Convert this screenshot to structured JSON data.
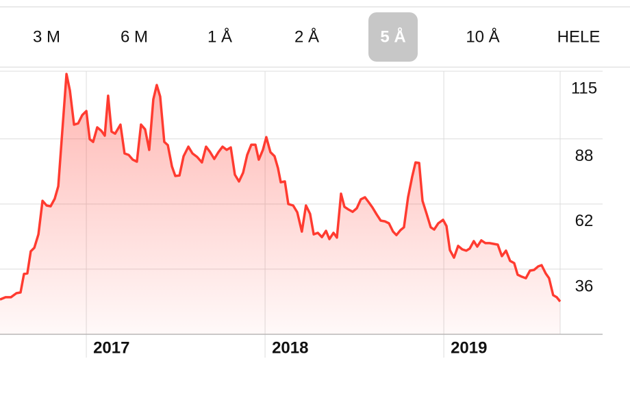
{
  "tabs": {
    "options": [
      "3 M",
      "6 M",
      "1 Å",
      "2 Å",
      "5 Å",
      "10 Å",
      "HELE"
    ],
    "selected": 4
  },
  "chart_data": {
    "type": "area",
    "color": "#ff3b30",
    "x": [
      2016.517,
      2016.548,
      2016.578,
      2016.609,
      2016.632,
      2016.651,
      2016.67,
      2016.689,
      2016.709,
      2016.732,
      2016.755,
      2016.778,
      2016.8,
      2016.823,
      2016.843,
      2016.866,
      2016.889,
      2016.908,
      2016.931,
      2016.954,
      2016.977,
      2017.0,
      2017.019,
      2017.038,
      2017.061,
      2017.084,
      2017.103,
      2017.122,
      2017.141,
      2017.161,
      2017.191,
      2017.214,
      2017.237,
      2017.26,
      2017.283,
      2017.306,
      2017.329,
      2017.352,
      2017.375,
      2017.394,
      2017.413,
      2017.436,
      2017.456,
      2017.479,
      2017.498,
      2017.521,
      2017.544,
      2017.571,
      2017.594,
      2017.62,
      2017.647,
      2017.67,
      2017.693,
      2017.716,
      2017.739,
      2017.762,
      2017.785,
      2017.808,
      2017.831,
      2017.854,
      2017.877,
      2017.9,
      2017.923,
      2017.946,
      2017.965,
      2017.988,
      2018.007,
      2018.03,
      2018.053,
      2018.072,
      2018.088,
      2018.111,
      2018.13,
      2018.157,
      2018.18,
      2018.206,
      2018.229,
      2018.252,
      2018.272,
      2018.295,
      2018.318,
      2018.341,
      2018.36,
      2018.383,
      2018.402,
      2018.425,
      2018.444,
      2018.467,
      2018.49,
      2018.513,
      2018.536,
      2018.559,
      2018.582,
      2018.601,
      2018.624,
      2018.647,
      2018.67,
      2018.693,
      2018.716,
      2018.735,
      2018.758,
      2018.777,
      2018.8,
      2018.823,
      2018.842,
      2018.862,
      2018.881,
      2018.904,
      2018.927,
      2018.946,
      2018.969,
      2018.996,
      2019.015,
      2019.034,
      2019.057,
      2019.08,
      2019.103,
      2019.126,
      2019.145,
      2019.168,
      2019.187,
      2019.21,
      2019.233,
      2019.256,
      2019.279,
      2019.302,
      2019.325,
      2019.348,
      2019.371,
      2019.394,
      2019.413,
      2019.436,
      2019.459,
      2019.482,
      2019.505,
      2019.528,
      2019.547,
      2019.57,
      2019.589,
      2019.612,
      2019.632,
      2019.651
    ],
    "values": [
      23.9,
      24.8,
      24.8,
      26.4,
      26.7,
      34.1,
      34.3,
      43.1,
      44.5,
      49.9,
      63.3,
      61.4,
      61.1,
      64.1,
      69.1,
      91.5,
      113.9,
      107.3,
      93.7,
      94.2,
      97.5,
      99.1,
      87.9,
      86.8,
      92.6,
      91.2,
      89.3,
      105.2,
      90.9,
      90.1,
      93.7,
      82.2,
      81.6,
      79.7,
      78.9,
      93.7,
      91.8,
      83.6,
      103.8,
      109.5,
      104.9,
      86.8,
      85.5,
      77.0,
      73.2,
      73.4,
      81.1,
      84.9,
      82.2,
      80.8,
      78.6,
      84.9,
      82.7,
      80.0,
      82.7,
      84.9,
      83.6,
      84.6,
      73.7,
      71.0,
      74.5,
      81.6,
      85.7,
      85.7,
      79.7,
      83.6,
      88.7,
      82.7,
      81.1,
      76.4,
      70.7,
      71.0,
      62.0,
      61.4,
      58.7,
      51.0,
      61.4,
      58.1,
      49.9,
      50.5,
      48.8,
      51.3,
      48.0,
      50.5,
      48.6,
      66.1,
      60.9,
      59.8,
      58.9,
      60.3,
      63.9,
      64.7,
      62.5,
      60.6,
      57.9,
      55.4,
      55.1,
      54.3,
      51.0,
      49.6,
      51.6,
      52.7,
      64.7,
      72.9,
      78.6,
      78.4,
      63.3,
      58.1,
      52.7,
      51.8,
      54.3,
      55.7,
      53.2,
      43.6,
      40.6,
      45.3,
      43.9,
      43.4,
      44.2,
      47.2,
      45.0,
      47.5,
      46.4,
      46.4,
      46.1,
      45.8,
      41.2,
      43.4,
      39.3,
      38.4,
      33.8,
      33.0,
      32.4,
      35.4,
      35.7,
      37.1,
      37.6,
      34.3,
      32.4,
      25.6,
      24.8,
      23.1
    ],
    "xlim": [
      2016.517,
      2019.651
    ],
    "xticks": [
      2017,
      2018,
      2019
    ],
    "ylim": [
      10,
      115
    ],
    "yticks": [
      115,
      88,
      62,
      36
    ],
    "grid": true
  }
}
